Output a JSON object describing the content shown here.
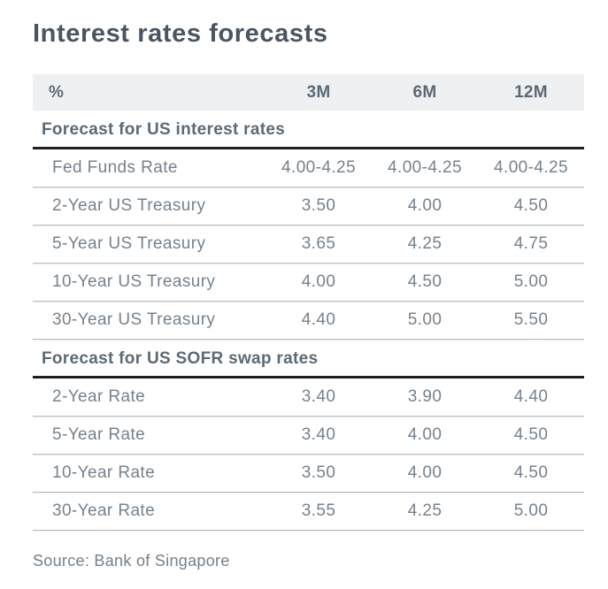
{
  "chart_data": {
    "type": "table",
    "title": "Interest rates forecasts",
    "unit_label": "%",
    "columns": [
      "%",
      "3M",
      "6M",
      "12M"
    ],
    "sections": [
      {
        "header": "Forecast for US interest rates",
        "rows": [
          {
            "label": "Fed Funds Rate",
            "values": [
              "4.00-4.25",
              "4.00-4.25",
              "4.00-4.25"
            ]
          },
          {
            "label": "2-Year US Treasury",
            "values": [
              "3.50",
              "4.00",
              "4.50"
            ]
          },
          {
            "label": "5-Year US Treasury",
            "values": [
              "3.65",
              "4.25",
              "4.75"
            ]
          },
          {
            "label": "10-Year US Treasury",
            "values": [
              "4.00",
              "4.50",
              "5.00"
            ]
          },
          {
            "label": "30-Year US Treasury",
            "values": [
              "4.40",
              "5.00",
              "5.50"
            ]
          }
        ]
      },
      {
        "header": "Forecast for US SOFR swap rates",
        "rows": [
          {
            "label": "2-Year Rate",
            "values": [
              "3.40",
              "3.90",
              "4.40"
            ]
          },
          {
            "label": "5-Year Rate",
            "values": [
              "3.40",
              "4.00",
              "4.50"
            ]
          },
          {
            "label": "10-Year Rate",
            "values": [
              "3.50",
              "4.00",
              "4.50"
            ]
          },
          {
            "label": "30-Year Rate",
            "values": [
              "3.55",
              "4.25",
              "5.00"
            ]
          }
        ]
      }
    ],
    "source": "Source: Bank of Singapore"
  },
  "colors": {
    "title_text": "#4b5560",
    "section_header_text": "#5c6a75",
    "body_text": "#76828c",
    "header_band_bg": "#eef0f1",
    "section_rule": "#1d2023",
    "row_rule": "#b9bec2",
    "background": "#ffffff"
  }
}
